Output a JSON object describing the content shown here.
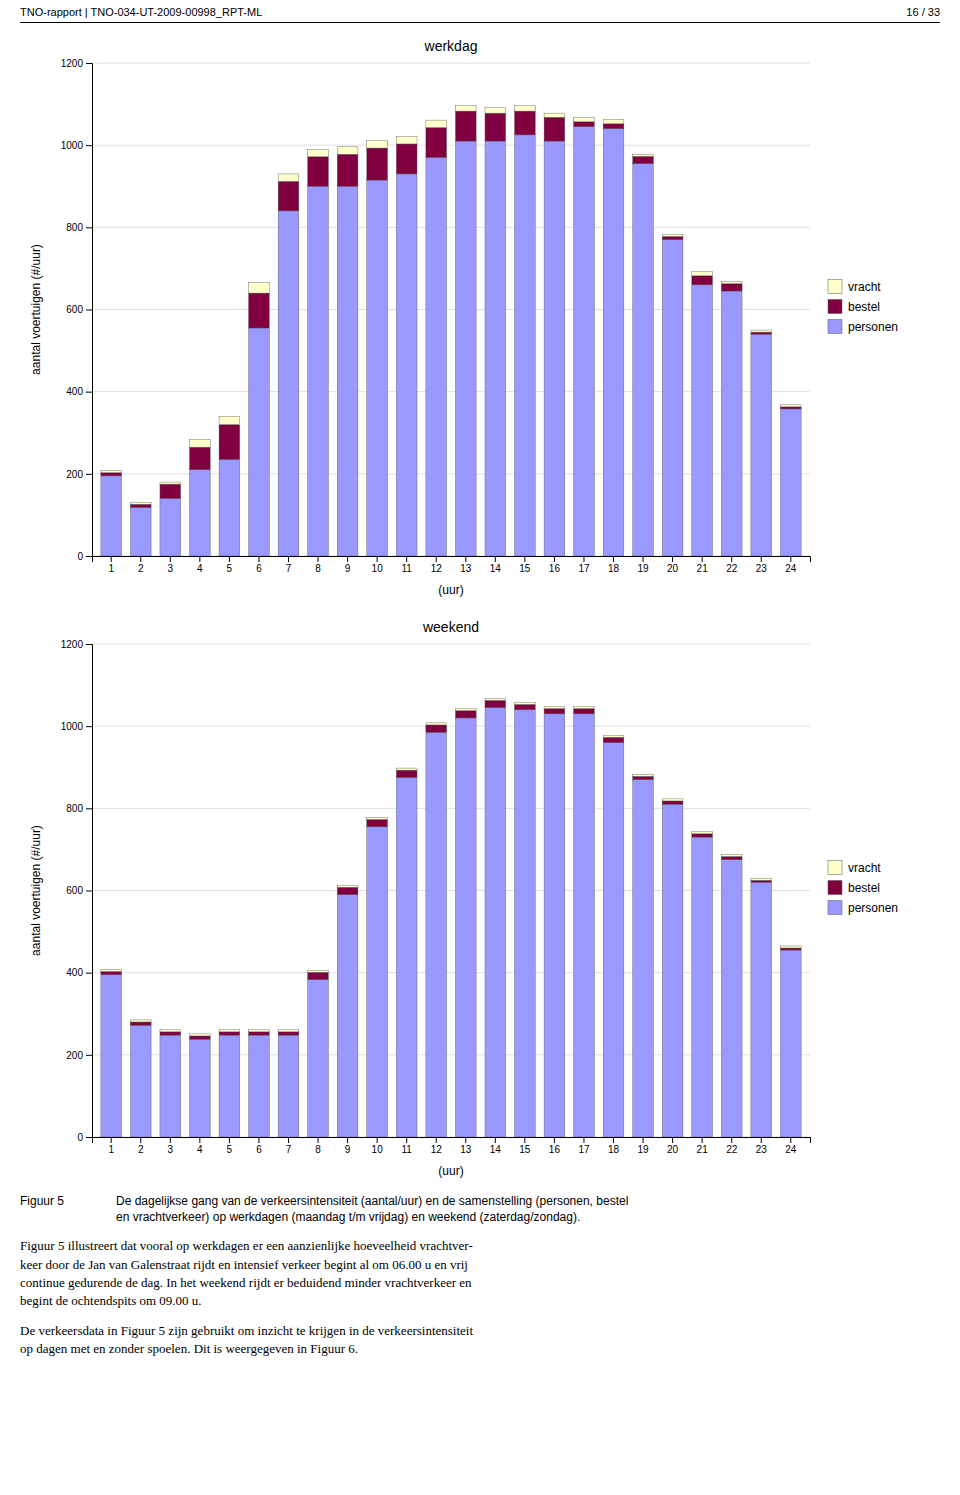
{
  "header_left": "TNO-rapport | TNO-034-UT-2009-00998_RPT-ML",
  "header_right": "16 / 33",
  "caption_label": "Figuur 5",
  "caption_text": "De dagelijkse gang van de verkeersintensiteit (aantal/uur) en de samenstelling (personen, bestel\nen vrachtverkeer) op werkdagen (maandag t/m vrijdag) en weekend (zaterdag/zondag).",
  "body_text": [
    "Figuur 5 illustreert dat vooral op werkdagen er een aanzienlijke hoeveelheid vrachtver-\nkeer door de Jan van Galenstraat rijdt en intensief verkeer begint al om 06.00 u en vrij\ncontinue gedurende de dag. In het weekend rijdt er beduidend minder vrachtverkeer en\nbegint de ochtendspits om 09.00 u.",
    "De verkeersdata in Figuur 5 zijn gebruikt om inzicht te krijgen in de verkeersintensiteit\nop dagen met en zonder spoelen. Dit is weergegeven in Figuur 6."
  ],
  "chart_data": [
    {
      "type": "bar",
      "title": "werkdag",
      "stacked": true,
      "grid": true,
      "legend": "right",
      "xlabel": "(uur)",
      "ylabel": "aantal voertuigen (#/uur)",
      "categories": [
        "1",
        "2",
        "3",
        "4",
        "5",
        "6",
        "7",
        "8",
        "9",
        "10",
        "11",
        "12",
        "13",
        "14",
        "15",
        "16",
        "17",
        "18",
        "19",
        "20",
        "21",
        "22",
        "23",
        "24"
      ],
      "series": [
        {
          "name": "personen",
          "color": "#9999FF",
          "values": [
            195,
            118,
            140,
            210,
            235,
            555,
            840,
            900,
            900,
            915,
            930,
            970,
            1010,
            1010,
            1025,
            1010,
            1045,
            1040,
            955,
            770,
            660,
            645,
            540,
            358
          ]
        },
        {
          "name": "bestel",
          "color": "#800040",
          "values": [
            8,
            8,
            35,
            55,
            85,
            85,
            72,
            72,
            78,
            78,
            73,
            73,
            73,
            68,
            58,
            58,
            12,
            12,
            18,
            8,
            22,
            18,
            5,
            5
          ]
        },
        {
          "name": "vracht",
          "color": "#FFFFCC",
          "values": [
            5,
            5,
            5,
            18,
            20,
            25,
            18,
            18,
            18,
            18,
            18,
            18,
            13,
            13,
            13,
            10,
            10,
            10,
            5,
            5,
            10,
            5,
            5,
            5
          ]
        }
      ],
      "ylim": [
        0,
        1200
      ],
      "yticks": [
        0,
        200,
        400,
        600,
        800,
        1000,
        1200
      ]
    },
    {
      "type": "bar",
      "title": "weekend",
      "stacked": true,
      "grid": true,
      "legend": "right",
      "xlabel": "(uur)",
      "ylabel": "aantal voertuigen (#/uur)",
      "categories": [
        "1",
        "2",
        "3",
        "4",
        "5",
        "6",
        "7",
        "8",
        "9",
        "10",
        "11",
        "12",
        "13",
        "14",
        "15",
        "16",
        "17",
        "18",
        "19",
        "20",
        "21",
        "22",
        "23",
        "24"
      ],
      "series": [
        {
          "name": "personen",
          "color": "#9999FF",
          "values": [
            395,
            272,
            248,
            238,
            248,
            248,
            248,
            383,
            590,
            755,
            875,
            985,
            1020,
            1045,
            1040,
            1030,
            1030,
            960,
            870,
            810,
            730,
            675,
            620,
            455
          ]
        },
        {
          "name": "bestel",
          "color": "#800040",
          "values": [
            8,
            8,
            8,
            8,
            8,
            8,
            8,
            18,
            18,
            18,
            18,
            18,
            18,
            18,
            13,
            13,
            13,
            13,
            8,
            8,
            8,
            8,
            5,
            5
          ]
        },
        {
          "name": "vracht",
          "color": "#FFFFCC",
          "values": [
            5,
            5,
            5,
            5,
            5,
            5,
            5,
            5,
            5,
            5,
            5,
            5,
            5,
            5,
            5,
            5,
            5,
            5,
            5,
            5,
            5,
            5,
            5,
            5
          ]
        }
      ],
      "ylim": [
        0,
        1200
      ],
      "yticks": [
        0,
        200,
        400,
        600,
        800,
        1000,
        1200
      ]
    }
  ]
}
